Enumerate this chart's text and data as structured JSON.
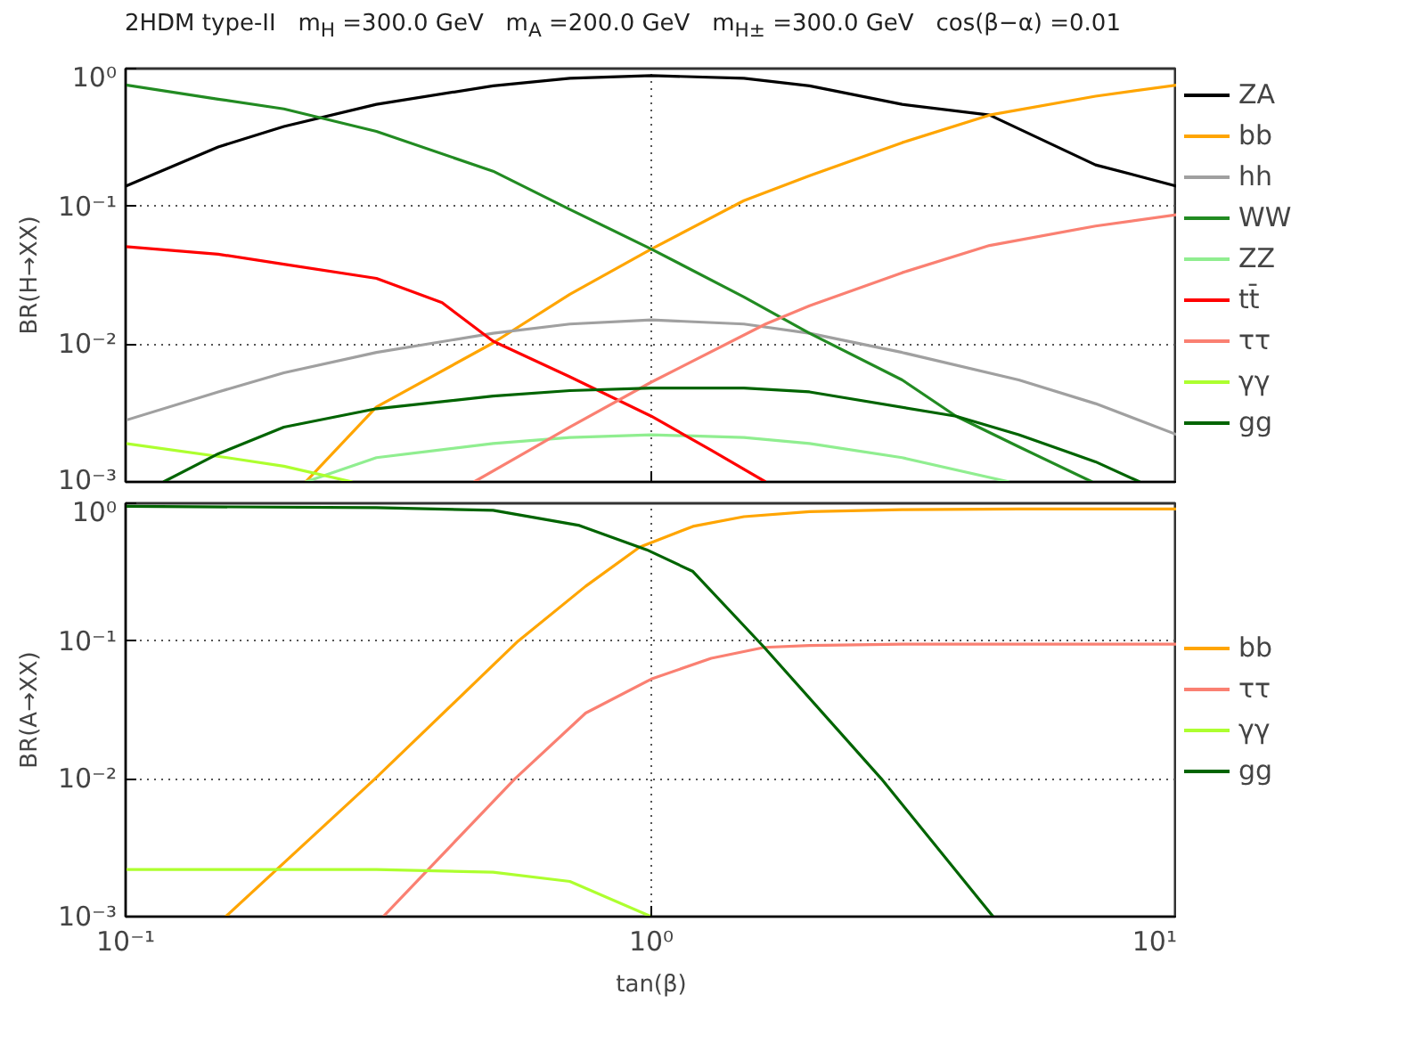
{
  "chart_data": [
    {
      "type": "line",
      "title": "2HDM type-II   m$_{H}$ =300.0 GeV   m$_{A}$ =200.0 GeV   m$_{H±}$ =300.0 GeV   cos(β−α) =0.01",
      "ylabel": "BR(H→XX)",
      "log": "xy",
      "grid": true,
      "legend": "right",
      "tick_labels": "y",
      "line_style": "solid",
      "xlim": [
        0.1,
        10
      ],
      "ylim": [
        0.001,
        1
      ],
      "xticks": [
        {
          "value": 0.1,
          "label": null
        },
        {
          "value": 1,
          "label": null
        },
        {
          "value": 10,
          "label": null
        }
      ],
      "yticks": [
        {
          "value": 0.001,
          "label": "10⁻³"
        },
        {
          "value": 0.01,
          "label": "10⁻²"
        },
        {
          "value": 0.1,
          "label": "10⁻¹"
        },
        {
          "value": 1,
          "label": "10⁰"
        }
      ],
      "series": [
        {
          "name": "ZA",
          "color": "#000000",
          "x": [
            0.1,
            0.15,
            0.2,
            0.3,
            0.5,
            0.7,
            1,
            1.5,
            2,
            3,
            4.4,
            7,
            10
          ],
          "values": [
            0.14,
            0.27,
            0.38,
            0.55,
            0.75,
            0.85,
            0.89,
            0.85,
            0.75,
            0.55,
            0.46,
            0.2,
            0.14
          ]
        },
        {
          "name": "bb",
          "color": "#ffa500",
          "x": [
            0.22,
            0.3,
            0.5,
            0.7,
            1,
            1.5,
            2,
            3,
            4.4,
            7,
            10
          ],
          "values": [
            0.001,
            0.0035,
            0.0102,
            0.023,
            0.049,
            0.11,
            0.167,
            0.29,
            0.46,
            0.63,
            0.76
          ]
        },
        {
          "name": "hh",
          "color": "#a0a0a0",
          "x": [
            0.1,
            0.15,
            0.2,
            0.3,
            0.5,
            0.7,
            1,
            1.5,
            2,
            3,
            5,
            7,
            10
          ],
          "values": [
            0.0028,
            0.0045,
            0.0062,
            0.0087,
            0.012,
            0.014,
            0.015,
            0.014,
            0.012,
            0.0087,
            0.0055,
            0.0037,
            0.0022
          ]
        },
        {
          "name": "WW",
          "color": "#228b22",
          "x": [
            0.1,
            0.15,
            0.2,
            0.3,
            0.5,
            0.7,
            1,
            1.5,
            2,
            3,
            3.8,
            5,
            6.9
          ],
          "values": [
            0.76,
            0.6,
            0.51,
            0.35,
            0.18,
            0.095,
            0.049,
            0.022,
            0.012,
            0.0055,
            0.003,
            0.0018,
            0.001
          ]
        },
        {
          "name": "ZZ",
          "color": "#90ee90",
          "x": [
            0.22,
            0.3,
            0.5,
            0.7,
            1,
            1.5,
            2,
            3,
            4.8
          ],
          "values": [
            0.001,
            0.0015,
            0.0019,
            0.0021,
            0.0022,
            0.0021,
            0.0019,
            0.0015,
            0.001
          ]
        },
        {
          "name": "tt̄",
          "color": "#ff0000",
          "x": [
            0.1,
            0.15,
            0.2,
            0.3,
            0.4,
            0.5,
            0.7,
            1,
            1.3,
            1.65
          ],
          "values": [
            0.051,
            0.045,
            0.038,
            0.03,
            0.02,
            0.0105,
            0.0058,
            0.003,
            0.0017,
            0.001
          ]
        },
        {
          "name": "ττ",
          "color": "#fa8072",
          "x": [
            0.46,
            0.7,
            1,
            1.65,
            2,
            3,
            4.4,
            7,
            10
          ],
          "values": [
            0.001,
            0.0025,
            0.0053,
            0.014,
            0.019,
            0.033,
            0.052,
            0.072,
            0.087
          ]
        },
        {
          "name": "γγ",
          "color": "#adff2f",
          "x": [
            0.1,
            0.156,
            0.2,
            0.27
          ],
          "values": [
            0.0019,
            0.0015,
            0.0013,
            0.001
          ]
        },
        {
          "name": "gg",
          "color": "#006400",
          "x": [
            0.118,
            0.15,
            0.2,
            0.3,
            0.5,
            0.7,
            1,
            1.5,
            2,
            3.8,
            5,
            7,
            8.5
          ],
          "values": [
            0.001,
            0.0016,
            0.0025,
            0.0034,
            0.0042,
            0.0046,
            0.0048,
            0.0048,
            0.0045,
            0.003,
            0.0022,
            0.0014,
            0.001
          ]
        }
      ]
    },
    {
      "type": "line",
      "ylabel": "BR(A→XX)",
      "xlabel": "tan(β)",
      "log": "xy",
      "grid": true,
      "legend": "right",
      "line_style": "solid",
      "xlim": [
        0.1,
        10
      ],
      "ylim": [
        0.001,
        1
      ],
      "xticks": [
        {
          "value": 0.1,
          "label": "10⁻¹"
        },
        {
          "value": 1,
          "label": "10⁰"
        },
        {
          "value": 10,
          "label": "10¹"
        }
      ],
      "yticks": [
        {
          "value": 0.001,
          "label": "10⁻³"
        },
        {
          "value": 0.01,
          "label": "10⁻²"
        },
        {
          "value": 0.1,
          "label": "10⁻¹"
        },
        {
          "value": 1,
          "label": "10⁰"
        }
      ],
      "series": [
        {
          "name": "bb",
          "color": "#ffa500",
          "x": [
            0.155,
            0.298,
            0.558,
            0.75,
            0.95,
            1.2,
            1.5,
            2,
            3,
            5,
            10
          ],
          "values": [
            0.001,
            0.01,
            0.1,
            0.25,
            0.48,
            0.68,
            0.8,
            0.87,
            0.9,
            0.91,
            0.91
          ]
        },
        {
          "name": "ττ",
          "color": "#fa8072",
          "x": [
            0.309,
            0.55,
            0.75,
            1,
            1.3,
            1.64,
            2,
            3,
            10
          ],
          "values": [
            0.001,
            0.01,
            0.03,
            0.053,
            0.075,
            0.09,
            0.093,
            0.095,
            0.095
          ]
        },
        {
          "name": "γγ",
          "color": "#adff2f",
          "x": [
            0.1,
            0.3,
            0.5,
            0.7,
            1
          ],
          "values": [
            0.0022,
            0.0022,
            0.0021,
            0.0018,
            0.001
          ]
        },
        {
          "name": "gg",
          "color": "#006400",
          "x": [
            0.1,
            0.3,
            0.5,
            0.73,
            0.98,
            1.2,
            1.64,
            2.74,
            4.47
          ],
          "values": [
            0.95,
            0.93,
            0.89,
            0.69,
            0.46,
            0.32,
            0.09,
            0.01,
            0.001
          ]
        }
      ]
    }
  ]
}
